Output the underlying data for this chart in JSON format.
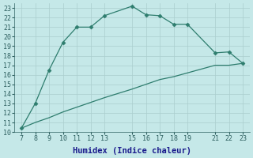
{
  "xlabel": "Humidex (Indice chaleur)",
  "background_color": "#c5e8e8",
  "line_color": "#2e7d6e",
  "upper_x": [
    7,
    8,
    9,
    10,
    11,
    12,
    13,
    15,
    16,
    17,
    18,
    19,
    21,
    22,
    23
  ],
  "upper_y": [
    10.4,
    13.0,
    16.5,
    19.4,
    21.0,
    21.0,
    22.2,
    23.2,
    22.3,
    22.2,
    21.3,
    21.3,
    18.3,
    18.4,
    17.2
  ],
  "lower_x": [
    7,
    8,
    9,
    10,
    11,
    12,
    13,
    15,
    16,
    17,
    18,
    19,
    21,
    22,
    23
  ],
  "lower_y": [
    10.4,
    11.0,
    11.5,
    12.1,
    12.6,
    13.1,
    13.6,
    14.5,
    15.0,
    15.5,
    15.8,
    16.2,
    17.0,
    17.0,
    17.2
  ],
  "xlim": [
    6.5,
    23.5
  ],
  "ylim": [
    10.0,
    23.5
  ],
  "xticks": [
    7,
    8,
    9,
    10,
    11,
    12,
    13,
    15,
    16,
    17,
    18,
    19,
    21,
    22,
    23
  ],
  "yticks": [
    10,
    11,
    12,
    13,
    14,
    15,
    16,
    17,
    18,
    19,
    20,
    21,
    22,
    23
  ],
  "grid_color": "#aacece",
  "marker": "D",
  "markersize": 2.5,
  "xlabel_color": "#1a1a8c",
  "tick_color": "#2e6060",
  "xlabel_fontsize": 7.5,
  "tick_fontsize": 6.0
}
